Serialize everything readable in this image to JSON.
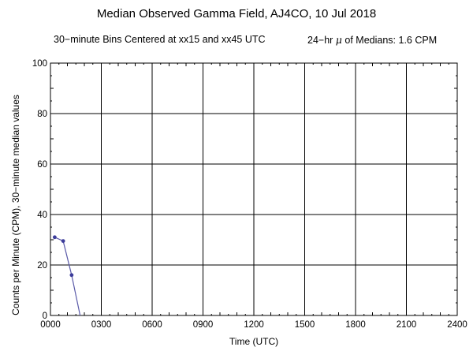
{
  "chart_data": {
    "type": "line",
    "title": "Median Observed Gamma Field, AJ4CO, 10 Jul 2018",
    "subtitle_left": "30−minute Bins Centered at xx15 and xx45 UTC",
    "subtitle_right_prefix": "24−hr ",
    "subtitle_right_symbol": "μ",
    "subtitle_right_suffix": " of Medians: 1.6 CPM",
    "xlabel": "Time (UTC)",
    "ylabel": "Counts per Minute (CPM), 30−minute median values",
    "xlim": [
      0,
      24
    ],
    "ylim": [
      0,
      100
    ],
    "x_ticks": [
      {
        "value": 0,
        "label": "0000"
      },
      {
        "value": 3,
        "label": "0300"
      },
      {
        "value": 6,
        "label": "0600"
      },
      {
        "value": 9,
        "label": "0900"
      },
      {
        "value": 12,
        "label": "1200"
      },
      {
        "value": 15,
        "label": "1500"
      },
      {
        "value": 18,
        "label": "1800"
      },
      {
        "value": 21,
        "label": "2100"
      },
      {
        "value": 24,
        "label": "2400"
      }
    ],
    "y_ticks": [
      {
        "value": 0,
        "label": "0"
      },
      {
        "value": 20,
        "label": "20"
      },
      {
        "value": 40,
        "label": "40"
      },
      {
        "value": 60,
        "label": "60"
      },
      {
        "value": 80,
        "label": "80"
      },
      {
        "value": 100,
        "label": "100"
      }
    ],
    "grid": true,
    "series": [
      {
        "color": "#5a5aa8",
        "points": [
          {
            "x": 0.25,
            "y": 31
          },
          {
            "x": 0.75,
            "y": 29.5
          },
          {
            "x": 1.25,
            "y": 16
          },
          {
            "x": 1.75,
            "y": 0
          }
        ]
      }
    ]
  }
}
